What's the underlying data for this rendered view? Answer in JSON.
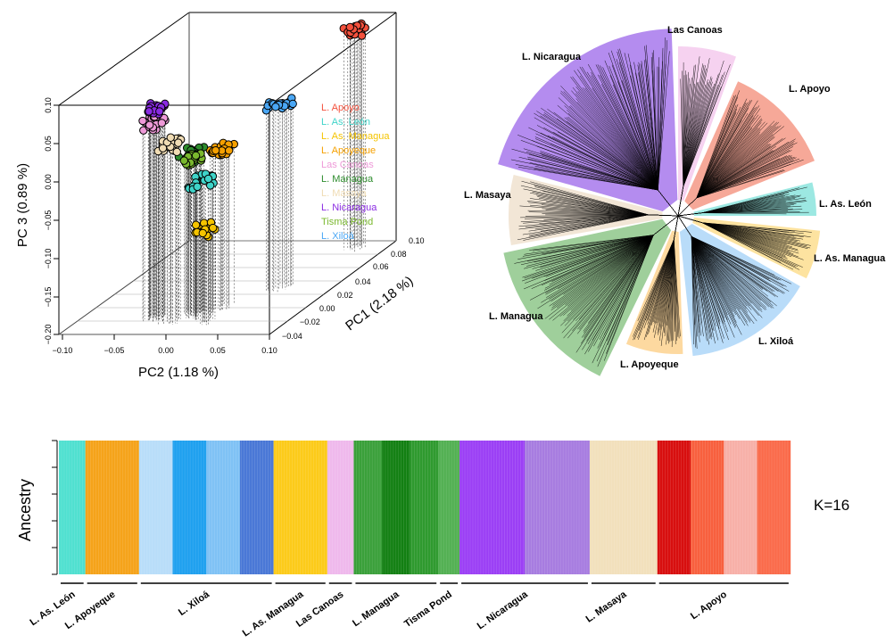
{
  "pca": {
    "xlabel": "PC2 (1.18 %)",
    "ylabel": "PC 3 (0.89 %)",
    "zlabel": "PC1 (2.18 %)",
    "x_ticks": [
      "−0.10",
      "−0.05",
      "0.00",
      "0.05",
      "0.10"
    ],
    "y_ticks": [
      "0.10",
      "0.05",
      "0.00",
      "−0.05",
      "−0.10",
      "−0.15",
      "−0.20"
    ],
    "z_ticks": [
      "−0.04",
      "−0.02",
      "0.00",
      "0.02",
      "0.04",
      "0.06",
      "0.08",
      "0.10"
    ],
    "legend": [
      {
        "name": "L. Apoyo",
        "color": "#f4513d"
      },
      {
        "name": "L. As. León",
        "color": "#3fd4c9"
      },
      {
        "name": "L. As. Managua",
        "color": "#f5c400"
      },
      {
        "name": "L. Apoyeque",
        "color": "#f5a000"
      },
      {
        "name": "Las Canoas",
        "color": "#ee9ad8"
      },
      {
        "name": "L. Managua",
        "color": "#2d8c2d"
      },
      {
        "name": "L. Masaya",
        "color": "#f0dcb4"
      },
      {
        "name": "L. Nicaragua",
        "color": "#8a2be2"
      },
      {
        "name": "Tisma Pond",
        "color": "#7ab82e"
      },
      {
        "name": "L. Xiloá",
        "color": "#4aa7f5"
      }
    ]
  },
  "tree": {
    "clades": [
      {
        "name": "L. Nicaragua",
        "color": "#b48cef"
      },
      {
        "name": "Las Canoas",
        "color": "#f6d2f0"
      },
      {
        "name": "L. Apoyo",
        "color": "#f6a898"
      },
      {
        "name": "L. As. León",
        "color": "#9ce8e2"
      },
      {
        "name": "L. As. Managua",
        "color": "#fde3a0"
      },
      {
        "name": "L. Xiloá",
        "color": "#b9dcf9"
      },
      {
        "name": "L. Apoyeque",
        "color": "#fdd9a0"
      },
      {
        "name": "L. Managua",
        "color": "#9fcf9b"
      },
      {
        "name": "L. Masaya",
        "color": "#f2e6d6"
      }
    ]
  },
  "admixture": {
    "ylabel": "Ancestry",
    "k_label": "K=16",
    "populations": [
      {
        "name": "L. As. León"
      },
      {
        "name": "L. Apoyeque"
      },
      {
        "name": "L. Xiloá"
      },
      {
        "name": "L. As. Managua"
      },
      {
        "name": "Las Canoas"
      },
      {
        "name": "L. Managua"
      },
      {
        "name": "Tisma Pond"
      },
      {
        "name": "L. Nicaragua"
      },
      {
        "name": "L. Masaya"
      },
      {
        "name": "L. Apoyo"
      }
    ]
  },
  "chart_data": [
    {
      "type": "scatter",
      "title": "",
      "xlabel": "PC2 (1.18 %)",
      "ylabel": "PC 3 (0.89 %)",
      "zlabel": "PC1 (2.18 %)",
      "xlim": [
        -0.1,
        0.1
      ],
      "ylim": [
        -0.2,
        0.1
      ],
      "zlim": [
        -0.04,
        0.1
      ],
      "series": [
        {
          "name": "L. Apoyo",
          "x": 0.07,
          "y": 0.085,
          "z": 0.09
        },
        {
          "name": "L. As. León",
          "x": 0.01,
          "y": -0.025,
          "z": -0.01
        },
        {
          "name": "L. As. Managua",
          "x": 0.02,
          "y": -0.08,
          "z": -0.02
        },
        {
          "name": "L. Apoyeque",
          "x": 0.02,
          "y": 0.005,
          "z": 0.0
        },
        {
          "name": "Las Canoas",
          "x": -0.03,
          "y": 0.055,
          "z": -0.015
        },
        {
          "name": "L. Managua",
          "x": 0.0,
          "y": 0.01,
          "z": -0.01
        },
        {
          "name": "L. Masaya",
          "x": -0.01,
          "y": 0.03,
          "z": -0.02
        },
        {
          "name": "L. Nicaragua",
          "x": -0.03,
          "y": 0.075,
          "z": -0.015
        },
        {
          "name": "Tisma Pond",
          "x": 0.0,
          "y": 0.005,
          "z": -0.01
        },
        {
          "name": "L. Xiloá",
          "x": 0.05,
          "y": 0.04,
          "z": 0.03
        }
      ]
    },
    {
      "type": "bar",
      "title": "",
      "ylabel": "Ancestry",
      "k": 16,
      "categories": [
        "L. As. León",
        "L. Apoyeque",
        "L. Xiloá",
        "L. As. Managua",
        "Las Canoas",
        "L. Managua",
        "Tisma Pond",
        "L. Nicaragua",
        "L. Masaya",
        "L. Apoyo"
      ],
      "segments": [
        {
          "population": "L. As. León",
          "fraction": 0.036,
          "colors": [
            "#4fe0d0"
          ]
        },
        {
          "population": "L. Apoyeque",
          "fraction": 0.073,
          "colors": [
            "#f5a31a"
          ]
        },
        {
          "population": "L. Xiloá",
          "fraction": 0.183,
          "colors": [
            "#b8ddf9",
            "#1ea0ef",
            "#7fc2f5",
            "#4a78d6"
          ]
        },
        {
          "population": "L. As. Managua",
          "fraction": 0.073,
          "colors": [
            "#fccb1a"
          ]
        },
        {
          "population": "Las Canoas",
          "fraction": 0.036,
          "colors": [
            "#efb9ec"
          ]
        },
        {
          "population": "L. Managua",
          "fraction": 0.115,
          "colors": [
            "#3aa03a",
            "#138013",
            "#2f9a2f"
          ]
        },
        {
          "population": "Tisma Pond",
          "fraction": 0.029,
          "colors": [
            "#52b052"
          ]
        },
        {
          "population": "L. Nicaragua",
          "fraction": 0.177,
          "colors": [
            "#9b3ff5",
            "#a77ce0"
          ]
        },
        {
          "population": "L. Masaya",
          "fraction": 0.092,
          "colors": [
            "#f2e0bc"
          ]
        },
        {
          "population": "L. Apoyo",
          "fraction": 0.181,
          "colors": [
            "#d80f0f",
            "#f8603e",
            "#f7b0a8",
            "#fa6a4a"
          ]
        }
      ]
    }
  ]
}
